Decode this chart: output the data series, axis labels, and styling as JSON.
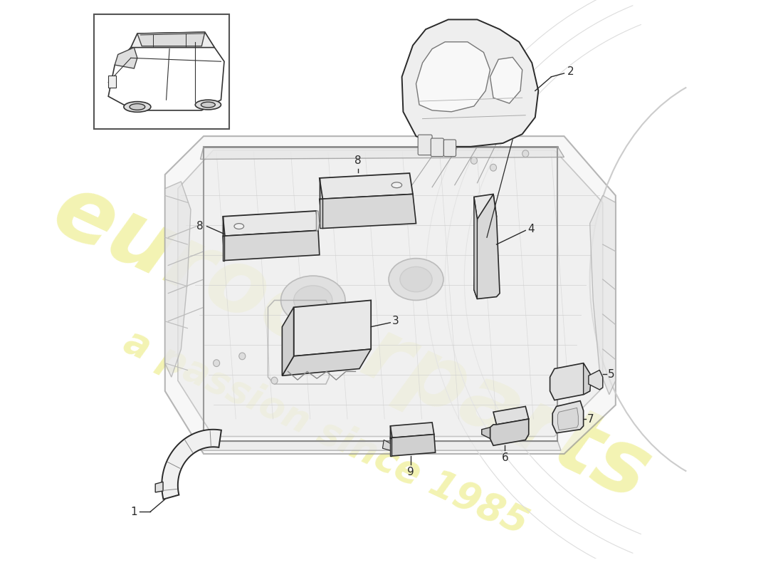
{
  "bg_color": "#ffffff",
  "line_color": "#2a2a2a",
  "light_gray": "#e8e8e8",
  "med_gray": "#c8c8c8",
  "dark_gray": "#aaaaaa",
  "wm1_text": "eurocarparts",
  "wm2_text": "a passion since 1985",
  "wm_color": "#d8d800",
  "wm_alpha": 0.3,
  "label_fs": 11
}
